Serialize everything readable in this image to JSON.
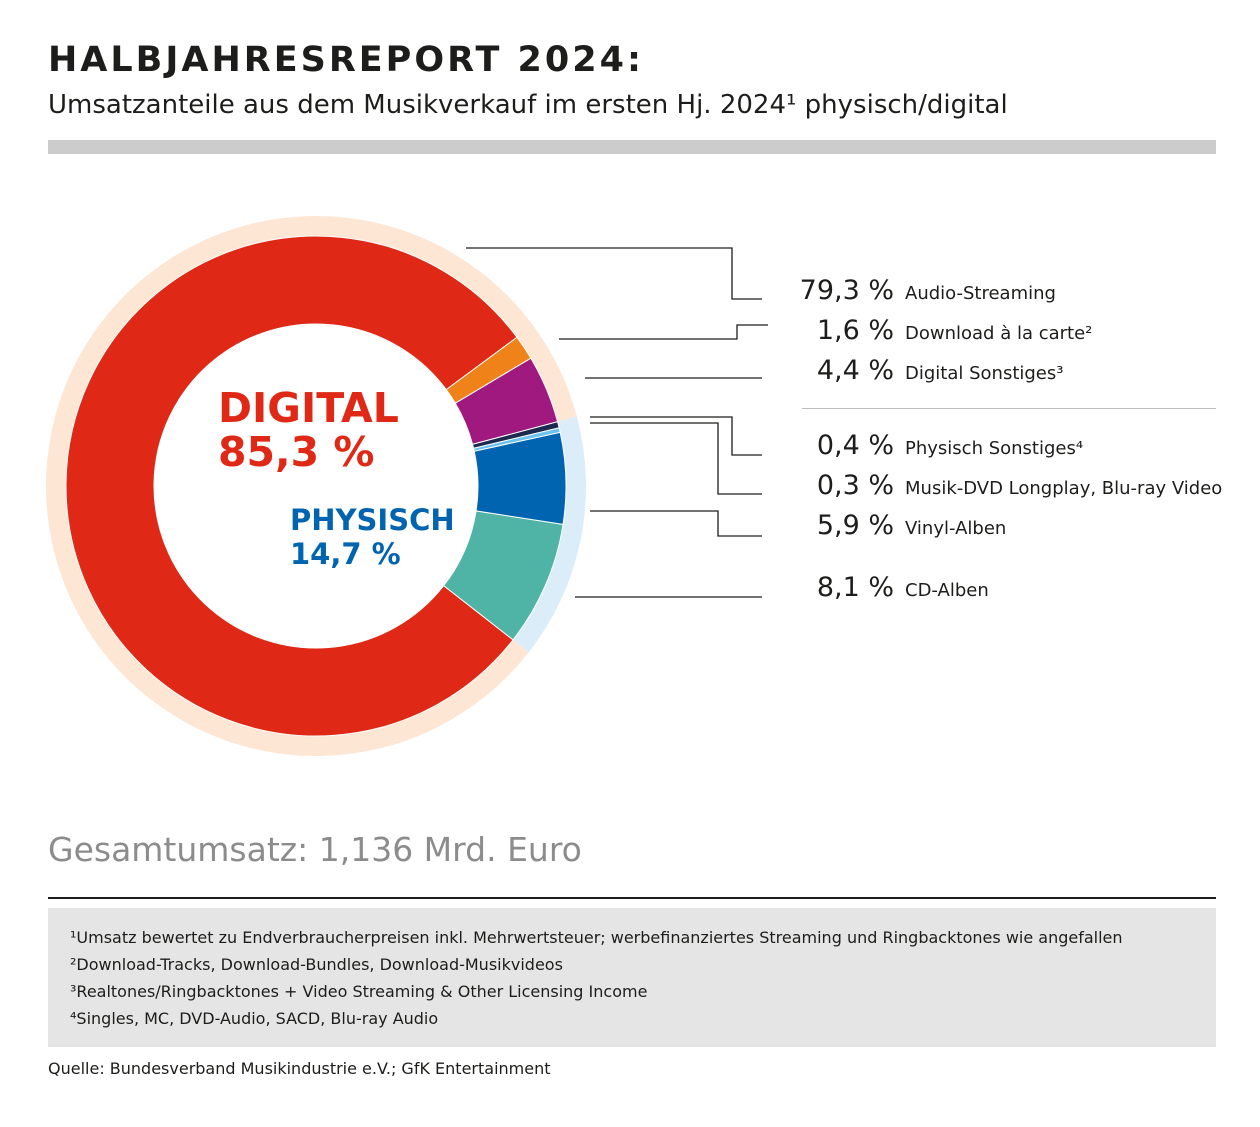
{
  "header": {
    "title": "HALBJAHRESREPORT 2024:",
    "subtitle": "Umsatzanteile aus dem Musikverkauf im ersten Hj. 2024¹ physisch/digital"
  },
  "chart_data": {
    "type": "pie",
    "variant": "donut",
    "groups": [
      {
        "label": "DIGITAL",
        "value_label": "85,3 %",
        "value": 85.3,
        "color": "#df2916",
        "ring_color": "#fde6d3"
      },
      {
        "label": "PHYSISCH",
        "value_label": "14,7 %",
        "value": 14.7,
        "color": "#0064b0",
        "ring_color": "#dcedfa"
      }
    ],
    "slices": [
      {
        "label": "Audio-Streaming",
        "value": 79.3,
        "value_label": "79,3 %",
        "group": "digital",
        "color": "#df2916"
      },
      {
        "label": "Download à la carte²",
        "value": 1.6,
        "value_label": "1,6 %",
        "group": "digital",
        "color": "#ef8319"
      },
      {
        "label": "Digital Sonstiges³",
        "value": 4.4,
        "value_label": "4,4 %",
        "group": "digital",
        "color": "#a0197f"
      },
      {
        "label": "Physisch Sonstiges⁴",
        "value": 0.4,
        "value_label": "0,4 %",
        "group": "physisch",
        "color": "#1b2a4e"
      },
      {
        "label": "Musik-DVD Longplay, Blu-ray Video",
        "value": 0.3,
        "value_label": "0,3 %",
        "group": "physisch",
        "color": "#6cc3ef"
      },
      {
        "label": "Vinyl-Alben",
        "value": 5.9,
        "value_label": "5,9 %",
        "group": "physisch",
        "color": "#0064b0"
      },
      {
        "label": "CD-Alben",
        "value": 8.1,
        "value_label": "8,1 %",
        "group": "physisch",
        "color": "#4fb3a5"
      }
    ],
    "unit": "%"
  },
  "total": "Gesamtumsatz: 1,136 Mrd. Euro",
  "footnotes": [
    "¹Umsatz bewertet zu Endverbraucherpreisen inkl. Mehrwertsteuer; werbefinanziertes Streaming und Ringbacktones wie angefallen",
    "²Download-Tracks, Download-Bundles, Download-Musikvideos",
    "³Realtones/Ringbacktones + Video Streaming & Other Licensing Income",
    "⁴Singles, MC, DVD-Audio, SACD, Blu-ray Audio"
  ],
  "source": "Quelle: Bundesverband Musikindustrie e.V.; GfK Entertainment"
}
